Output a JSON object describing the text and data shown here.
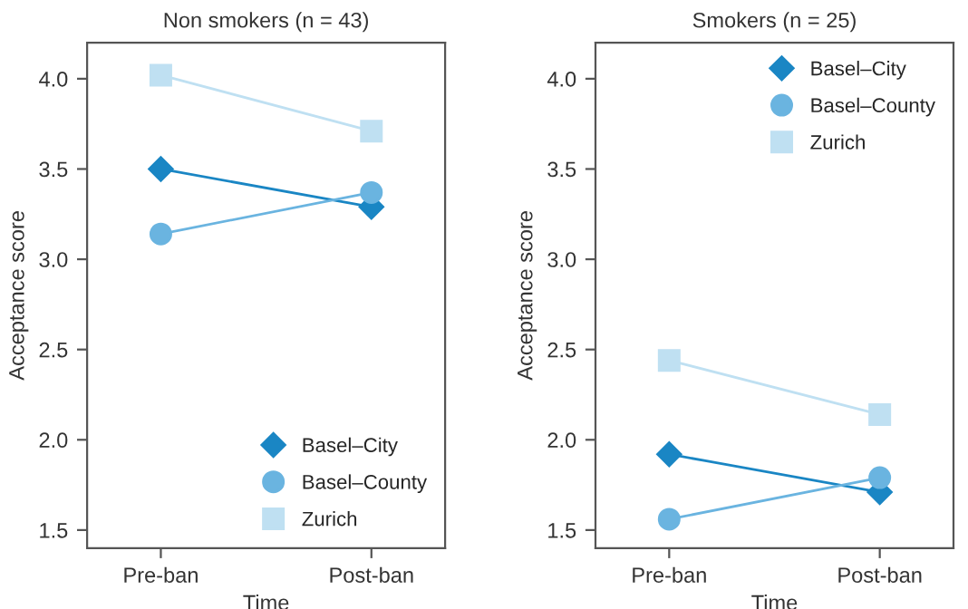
{
  "chart_data": [
    {
      "type": "line",
      "title": "Non smokers (n = 43)",
      "xlabel": "Time",
      "ylabel": "Acceptance score",
      "categories": [
        "Pre-ban",
        "Post-ban"
      ],
      "ylim": [
        1.4,
        4.2
      ],
      "yticks": [
        {
          "value": 1.5,
          "label": "1.5"
        },
        {
          "value": 2.0,
          "label": "2.0"
        },
        {
          "value": 2.5,
          "label": "2.5"
        },
        {
          "value": 3.0,
          "label": "3.0"
        },
        {
          "value": 3.5,
          "label": "3.5"
        },
        {
          "value": 4.0,
          "label": "4.0"
        }
      ],
      "grid": false,
      "legend": "bottom right",
      "series": [
        {
          "name": "Basel–City",
          "color": "#1a86c4",
          "marker": "diamond",
          "values": [
            3.5,
            3.29
          ]
        },
        {
          "name": "Basel–County",
          "color": "#6ab4e0",
          "marker": "circle",
          "values": [
            3.14,
            3.37
          ]
        },
        {
          "name": "Zurich",
          "color": "#bfe0f2",
          "marker": "square",
          "values": [
            4.02,
            3.71
          ]
        }
      ]
    },
    {
      "type": "line",
      "title": "Smokers (n = 25)",
      "xlabel": "Time",
      "ylabel": "Acceptance score",
      "categories": [
        "Pre-ban",
        "Post-ban"
      ],
      "ylim": [
        1.4,
        4.2
      ],
      "yticks": [
        {
          "value": 1.5,
          "label": "1.5"
        },
        {
          "value": 2.0,
          "label": "2.0"
        },
        {
          "value": 2.5,
          "label": "2.5"
        },
        {
          "value": 3.0,
          "label": "3.0"
        },
        {
          "value": 3.5,
          "label": "3.5"
        },
        {
          "value": 4.0,
          "label": "4.0"
        }
      ],
      "grid": false,
      "legend": "top right",
      "series": [
        {
          "name": "Basel–City",
          "color": "#1a86c4",
          "marker": "diamond",
          "values": [
            1.92,
            1.71
          ]
        },
        {
          "name": "Basel–County",
          "color": "#6ab4e0",
          "marker": "circle",
          "values": [
            1.56,
            1.79
          ]
        },
        {
          "name": "Zurich",
          "color": "#bfe0f2",
          "marker": "square",
          "values": [
            2.44,
            2.14
          ]
        }
      ]
    }
  ]
}
